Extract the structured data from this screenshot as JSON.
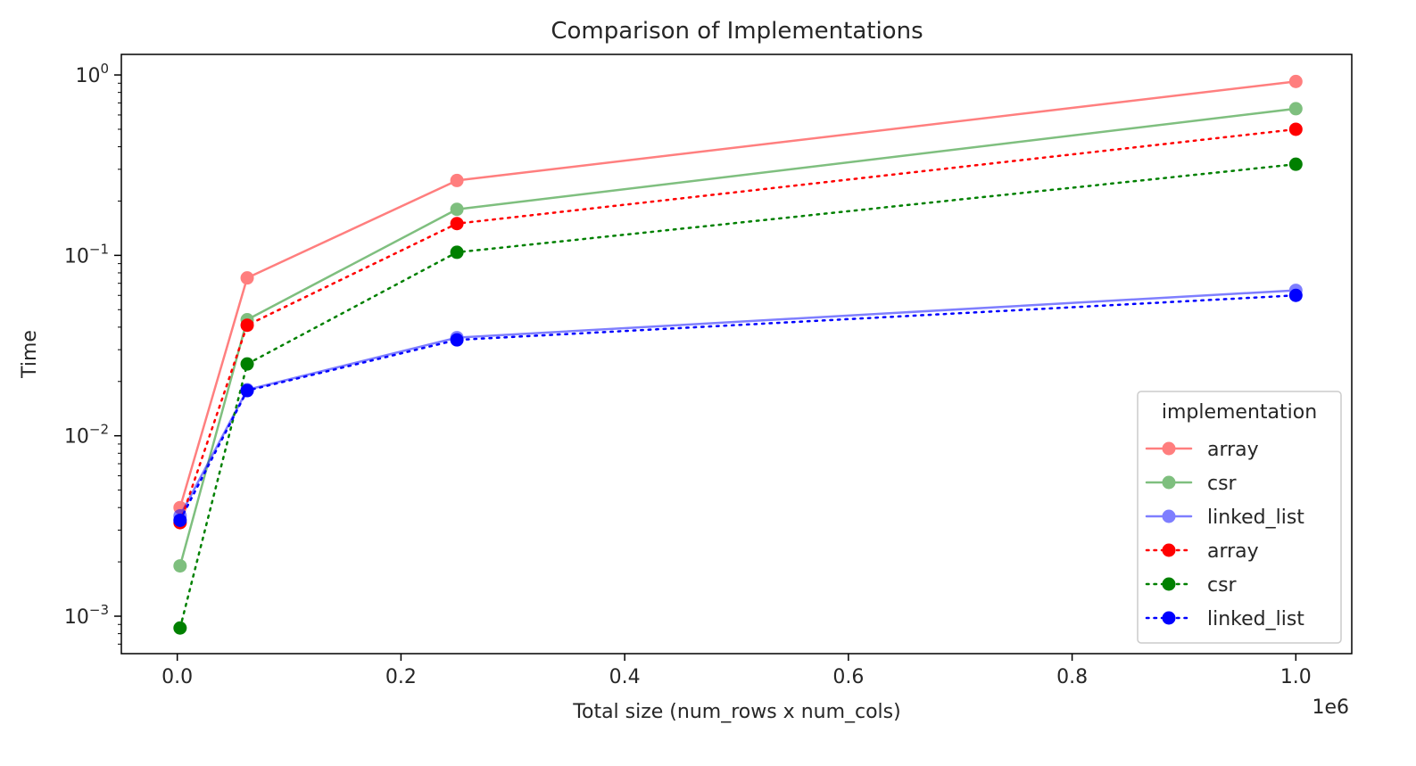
{
  "chart_data": {
    "type": "line",
    "title": "Comparison of Implementations",
    "xlabel": "Total size (num_rows x num_cols)",
    "ylabel": "Time",
    "x_offset_text": "1e6",
    "x_scale_factor": 1000000,
    "yscale": "log",
    "xlim": [
      -50000,
      1050000
    ],
    "ylim": [
      0.00062,
      1.3
    ],
    "x_ticks": [
      0,
      200000,
      400000,
      600000,
      800000,
      1000000
    ],
    "x_tick_labels": [
      "0.0",
      "0.2",
      "0.4",
      "0.6",
      "0.8",
      "1.0"
    ],
    "y_ticks": [
      0.001,
      0.01,
      0.1,
      1
    ],
    "y_tick_labels": [
      {
        "base": "10",
        "exp": "−3"
      },
      {
        "base": "10",
        "exp": "−2"
      },
      {
        "base": "10",
        "exp": "−1"
      },
      {
        "base": "10",
        "exp": "0"
      }
    ],
    "grid": false,
    "legend": {
      "title": "implementation",
      "placement": "lower-right"
    },
    "x": [
      2500,
      62500,
      250000,
      1000000
    ],
    "series": [
      {
        "name": "array",
        "color": "#ff0000",
        "linestyle": "solid",
        "alpha": 0.5,
        "values": [
          0.004,
          0.075,
          0.26,
          0.92
        ]
      },
      {
        "name": "csr",
        "color": "#008000",
        "linestyle": "solid",
        "alpha": 0.5,
        "values": [
          0.0019,
          0.044,
          0.18,
          0.65
        ]
      },
      {
        "name": "linked_list",
        "color": "#0000ff",
        "linestyle": "solid",
        "alpha": 0.5,
        "values": [
          0.0036,
          0.018,
          0.035,
          0.064
        ]
      },
      {
        "name": "array",
        "color": "#ff0000",
        "linestyle": "dotted",
        "alpha": 1,
        "values": [
          0.0033,
          0.041,
          0.15,
          0.5
        ]
      },
      {
        "name": "csr",
        "color": "#008000",
        "linestyle": "dotted",
        "alpha": 1,
        "values": [
          0.00086,
          0.025,
          0.104,
          0.32
        ]
      },
      {
        "name": "linked_list",
        "color": "#0000ff",
        "linestyle": "dotted",
        "alpha": 1,
        "values": [
          0.0034,
          0.0178,
          0.034,
          0.06
        ]
      }
    ]
  }
}
